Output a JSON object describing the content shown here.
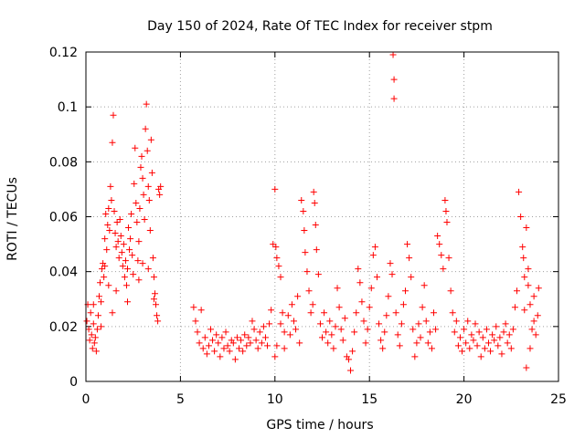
{
  "chart_data": {
    "type": "scatter",
    "title": "Day 150 of 2024, Rate Of TEC Index for receiver stpm",
    "xlabel": "GPS time / hours",
    "ylabel": "ROTI / TECUs",
    "xlim": [
      0,
      25
    ],
    "ylim": [
      0,
      0.12
    ],
    "xticks": [
      0,
      5,
      10,
      15,
      20,
      25
    ],
    "yticks": [
      0,
      0.02,
      0.04,
      0.06,
      0.08,
      0.1,
      0.12
    ],
    "xtick_labels": [
      "0",
      "5",
      "10",
      "15",
      "20",
      "25"
    ],
    "ytick_labels": [
      "0",
      "0.02",
      "0.04",
      "0.06",
      "0.08",
      "0.1",
      "0.12"
    ],
    "grid": true,
    "marker": "+",
    "marker_color": "#ff0000",
    "series": [
      {
        "name": "ROTI",
        "points": [
          [
            0.05,
            0.022
          ],
          [
            0.1,
            0.028
          ],
          [
            0.15,
            0.019
          ],
          [
            0.2,
            0.015
          ],
          [
            0.25,
            0.025
          ],
          [
            0.3,
            0.017
          ],
          [
            0.35,
            0.012
          ],
          [
            0.4,
            0.021
          ],
          [
            0.45,
            0.014
          ],
          [
            0.5,
            0.016
          ],
          [
            0.55,
            0.011
          ],
          [
            0.6,
            0.019
          ],
          [
            0.65,
            0.024
          ],
          [
            0.7,
            0.031
          ],
          [
            0.75,
            0.036
          ],
          [
            0.8,
            0.029
          ],
          [
            0.85,
            0.041
          ],
          [
            0.9,
            0.043
          ],
          [
            0.95,
            0.038
          ],
          [
            1.0,
            0.052
          ],
          [
            1.05,
            0.061
          ],
          [
            1.1,
            0.048
          ],
          [
            1.15,
            0.057
          ],
          [
            1.2,
            0.063
          ],
          [
            1.25,
            0.055
          ],
          [
            1.3,
            0.071
          ],
          [
            1.35,
            0.066
          ],
          [
            1.4,
            0.087
          ],
          [
            1.45,
            0.097
          ],
          [
            1.5,
            0.062
          ],
          [
            1.55,
            0.054
          ],
          [
            1.6,
            0.049
          ],
          [
            1.65,
            0.058
          ],
          [
            1.7,
            0.051
          ],
          [
            1.75,
            0.045
          ],
          [
            1.8,
            0.059
          ],
          [
            1.85,
            0.053
          ],
          [
            1.9,
            0.047
          ],
          [
            1.95,
            0.042
          ],
          [
            2.0,
            0.05
          ],
          [
            2.05,
            0.038
          ],
          [
            2.1,
            0.044
          ],
          [
            2.15,
            0.035
          ],
          [
            2.2,
            0.041
          ],
          [
            2.25,
            0.056
          ],
          [
            2.3,
            0.048
          ],
          [
            2.35,
            0.052
          ],
          [
            2.4,
            0.061
          ],
          [
            2.45,
            0.046
          ],
          [
            2.5,
            0.039
          ],
          [
            2.55,
            0.072
          ],
          [
            2.6,
            0.085
          ],
          [
            2.65,
            0.065
          ],
          [
            2.7,
            0.058
          ],
          [
            2.75,
            0.044
          ],
          [
            2.8,
            0.051
          ],
          [
            2.85,
            0.063
          ],
          [
            2.9,
            0.078
          ],
          [
            2.95,
            0.082
          ],
          [
            3.0,
            0.074
          ],
          [
            3.05,
            0.068
          ],
          [
            3.1,
            0.059
          ],
          [
            3.15,
            0.092
          ],
          [
            3.2,
            0.101
          ],
          [
            3.25,
            0.084
          ],
          [
            3.3,
            0.071
          ],
          [
            3.35,
            0.066
          ],
          [
            3.4,
            0.055
          ],
          [
            3.45,
            0.088
          ],
          [
            3.5,
            0.076
          ],
          [
            3.55,
            0.045
          ],
          [
            3.6,
            0.038
          ],
          [
            3.65,
            0.032
          ],
          [
            3.7,
            0.028
          ],
          [
            3.75,
            0.024
          ],
          [
            3.8,
            0.022
          ],
          [
            3.85,
            0.07
          ],
          [
            3.9,
            0.068
          ],
          [
            3.95,
            0.071
          ],
          [
            1.0,
            0.042
          ],
          [
            1.2,
            0.035
          ],
          [
            1.4,
            0.025
          ],
          [
            1.6,
            0.033
          ],
          [
            2.2,
            0.029
          ],
          [
            2.8,
            0.037
          ],
          [
            3.0,
            0.043
          ],
          [
            3.3,
            0.041
          ],
          [
            3.6,
            0.03
          ],
          [
            0.4,
            0.028
          ],
          [
            0.8,
            0.02
          ],
          [
            5.7,
            0.027
          ],
          [
            5.8,
            0.022
          ],
          [
            5.9,
            0.018
          ],
          [
            6.0,
            0.014
          ],
          [
            6.1,
            0.026
          ],
          [
            6.2,
            0.012
          ],
          [
            6.3,
            0.016
          ],
          [
            6.4,
            0.01
          ],
          [
            6.5,
            0.013
          ],
          [
            6.6,
            0.019
          ],
          [
            6.7,
            0.015
          ],
          [
            6.8,
            0.011
          ],
          [
            6.9,
            0.017
          ],
          [
            7.0,
            0.014
          ],
          [
            7.1,
            0.009
          ],
          [
            7.2,
            0.016
          ],
          [
            7.3,
            0.012
          ],
          [
            7.4,
            0.018
          ],
          [
            7.5,
            0.013
          ],
          [
            7.6,
            0.011
          ],
          [
            7.7,
            0.015
          ],
          [
            7.8,
            0.014
          ],
          [
            7.9,
            0.008
          ],
          [
            8.0,
            0.016
          ],
          [
            8.1,
            0.012
          ],
          [
            8.2,
            0.015
          ],
          [
            8.3,
            0.011
          ],
          [
            8.4,
            0.017
          ],
          [
            8.5,
            0.013
          ],
          [
            8.6,
            0.016
          ],
          [
            8.7,
            0.014
          ],
          [
            8.8,
            0.022
          ],
          [
            8.9,
            0.019
          ],
          [
            9.0,
            0.015
          ],
          [
            9.1,
            0.012
          ],
          [
            9.2,
            0.018
          ],
          [
            9.3,
            0.014
          ],
          [
            9.4,
            0.02
          ],
          [
            9.5,
            0.016
          ],
          [
            9.6,
            0.013
          ],
          [
            9.7,
            0.021
          ],
          [
            9.8,
            0.026
          ],
          [
            9.9,
            0.05
          ],
          [
            10.0,
            0.07
          ],
          [
            10.05,
            0.049
          ],
          [
            10.1,
            0.045
          ],
          [
            10.2,
            0.042
          ],
          [
            10.3,
            0.038
          ],
          [
            10.4,
            0.025
          ],
          [
            10.5,
            0.018
          ],
          [
            10.0,
            0.009
          ],
          [
            10.1,
            0.013
          ],
          [
            10.3,
            0.021
          ],
          [
            10.5,
            0.012
          ],
          [
            10.7,
            0.024
          ],
          [
            10.8,
            0.017
          ],
          [
            10.9,
            0.028
          ],
          [
            11.0,
            0.022
          ],
          [
            11.1,
            0.019
          ],
          [
            11.2,
            0.031
          ],
          [
            11.3,
            0.014
          ],
          [
            11.4,
            0.066
          ],
          [
            11.5,
            0.062
          ],
          [
            11.55,
            0.055
          ],
          [
            11.6,
            0.047
          ],
          [
            11.7,
            0.04
          ],
          [
            11.8,
            0.033
          ],
          [
            11.9,
            0.025
          ],
          [
            12.0,
            0.028
          ],
          [
            12.05,
            0.069
          ],
          [
            12.1,
            0.065
          ],
          [
            12.15,
            0.057
          ],
          [
            12.2,
            0.048
          ],
          [
            12.3,
            0.039
          ],
          [
            12.4,
            0.021
          ],
          [
            12.5,
            0.016
          ],
          [
            12.6,
            0.025
          ],
          [
            12.7,
            0.018
          ],
          [
            12.8,
            0.014
          ],
          [
            12.9,
            0.022
          ],
          [
            13.0,
            0.017
          ],
          [
            13.1,
            0.012
          ],
          [
            13.2,
            0.02
          ],
          [
            13.3,
            0.034
          ],
          [
            13.4,
            0.027
          ],
          [
            13.5,
            0.019
          ],
          [
            13.6,
            0.015
          ],
          [
            13.7,
            0.023
          ],
          [
            13.8,
            0.009
          ],
          [
            13.9,
            0.008
          ],
          [
            14.0,
            0.004
          ],
          [
            14.1,
            0.011
          ],
          [
            14.2,
            0.018
          ],
          [
            14.3,
            0.025
          ],
          [
            14.4,
            0.041
          ],
          [
            14.5,
            0.036
          ],
          [
            14.6,
            0.029
          ],
          [
            14.7,
            0.022
          ],
          [
            14.8,
            0.014
          ],
          [
            14.9,
            0.019
          ],
          [
            15.0,
            0.027
          ],
          [
            15.1,
            0.034
          ],
          [
            15.2,
            0.046
          ],
          [
            15.3,
            0.049
          ],
          [
            15.4,
            0.038
          ],
          [
            15.5,
            0.021
          ],
          [
            15.6,
            0.015
          ],
          [
            15.7,
            0.012
          ],
          [
            15.8,
            0.018
          ],
          [
            15.9,
            0.024
          ],
          [
            16.0,
            0.031
          ],
          [
            16.1,
            0.043
          ],
          [
            16.2,
            0.039
          ],
          [
            16.25,
            0.119
          ],
          [
            16.3,
            0.11
          ],
          [
            16.3,
            0.103
          ],
          [
            16.4,
            0.025
          ],
          [
            16.5,
            0.017
          ],
          [
            16.6,
            0.013
          ],
          [
            16.7,
            0.021
          ],
          [
            16.8,
            0.028
          ],
          [
            16.9,
            0.033
          ],
          [
            17.0,
            0.05
          ],
          [
            17.1,
            0.045
          ],
          [
            17.2,
            0.038
          ],
          [
            17.3,
            0.019
          ],
          [
            17.4,
            0.009
          ],
          [
            17.5,
            0.014
          ],
          [
            17.6,
            0.021
          ],
          [
            17.7,
            0.016
          ],
          [
            17.8,
            0.027
          ],
          [
            17.9,
            0.035
          ],
          [
            18.0,
            0.022
          ],
          [
            18.1,
            0.014
          ],
          [
            18.2,
            0.018
          ],
          [
            18.3,
            0.012
          ],
          [
            18.4,
            0.025
          ],
          [
            18.5,
            0.019
          ],
          [
            18.6,
            0.053
          ],
          [
            18.7,
            0.05
          ],
          [
            18.8,
            0.046
          ],
          [
            18.9,
            0.041
          ],
          [
            19.0,
            0.066
          ],
          [
            19.05,
            0.062
          ],
          [
            19.1,
            0.058
          ],
          [
            19.2,
            0.045
          ],
          [
            19.3,
            0.033
          ],
          [
            19.4,
            0.025
          ],
          [
            19.5,
            0.018
          ],
          [
            19.6,
            0.022
          ],
          [
            19.7,
            0.013
          ],
          [
            19.8,
            0.016
          ],
          [
            19.9,
            0.011
          ],
          [
            20.0,
            0.019
          ],
          [
            20.1,
            0.014
          ],
          [
            20.2,
            0.022
          ],
          [
            20.3,
            0.012
          ],
          [
            20.4,
            0.017
          ],
          [
            20.5,
            0.015
          ],
          [
            20.6,
            0.021
          ],
          [
            20.7,
            0.013
          ],
          [
            20.8,
            0.018
          ],
          [
            20.9,
            0.009
          ],
          [
            21.0,
            0.016
          ],
          [
            21.1,
            0.012
          ],
          [
            21.2,
            0.019
          ],
          [
            21.3,
            0.014
          ],
          [
            21.4,
            0.011
          ],
          [
            21.5,
            0.017
          ],
          [
            21.6,
            0.015
          ],
          [
            21.7,
            0.02
          ],
          [
            21.8,
            0.013
          ],
          [
            21.9,
            0.016
          ],
          [
            22.0,
            0.01
          ],
          [
            22.1,
            0.018
          ],
          [
            22.2,
            0.021
          ],
          [
            22.3,
            0.014
          ],
          [
            22.4,
            0.017
          ],
          [
            22.5,
            0.012
          ],
          [
            22.6,
            0.019
          ],
          [
            22.7,
            0.027
          ],
          [
            22.8,
            0.033
          ],
          [
            22.9,
            0.069
          ],
          [
            23.0,
            0.06
          ],
          [
            23.1,
            0.049
          ],
          [
            23.15,
            0.045
          ],
          [
            23.2,
            0.038
          ],
          [
            23.3,
            0.056
          ],
          [
            23.4,
            0.041
          ],
          [
            23.5,
            0.028
          ],
          [
            23.6,
            0.019
          ],
          [
            23.7,
            0.022
          ],
          [
            23.8,
            0.017
          ],
          [
            23.9,
            0.024
          ],
          [
            23.95,
            0.034
          ],
          [
            23.3,
            0.005
          ],
          [
            23.5,
            0.012
          ],
          [
            23.7,
            0.031
          ],
          [
            23.2,
            0.026
          ],
          [
            23.4,
            0.035
          ]
        ]
      }
    ]
  }
}
